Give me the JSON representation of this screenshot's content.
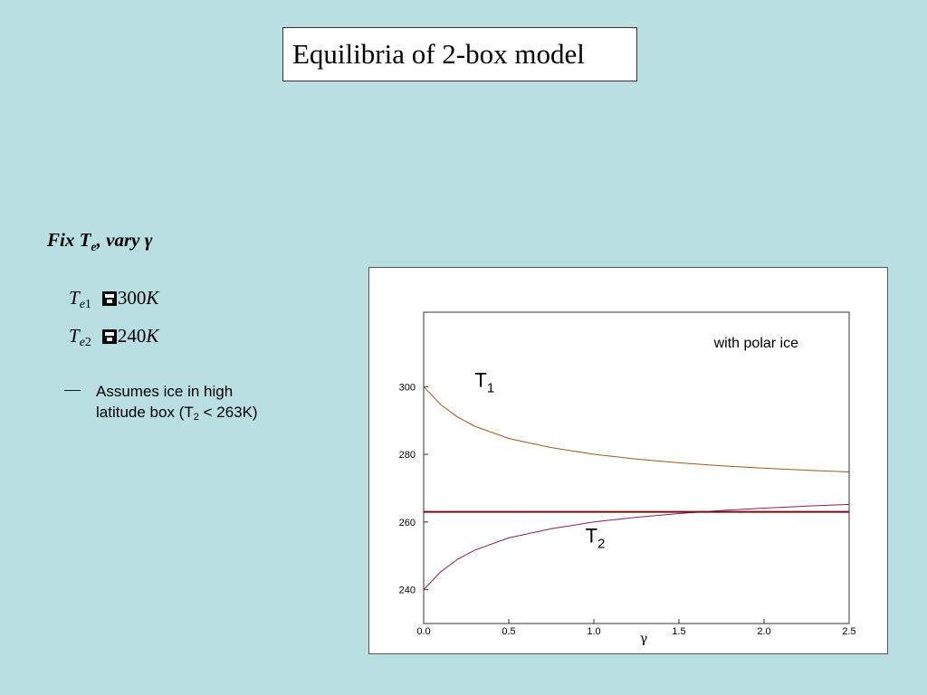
{
  "slide": {
    "title": "Equilibria of 2-box model",
    "heading": {
      "prefix": "Fix T",
      "sub": "e",
      "suffix": ", vary γ"
    },
    "equations": [
      {
        "var": "T",
        "sub_e": "e",
        "sub_n": "1",
        "value": "300",
        "unit": "K"
      },
      {
        "var": "T",
        "sub_e": "e",
        "sub_n": "2",
        "value": "240",
        "unit": "K"
      }
    ],
    "bullet": {
      "dash": "—",
      "line1": "Assumes ice in high",
      "line2_prefix": "latitude box (T",
      "line2_sub": "2",
      "line2_suffix": " < 263K)"
    }
  },
  "chart_data": {
    "type": "line",
    "xlabel": "γ",
    "ylabel": "",
    "xlim": [
      0.0,
      2.5
    ],
    "ylim": [
      230,
      322
    ],
    "xticks": [
      "0.0",
      "0.5",
      "1.0",
      "1.5",
      "2.0",
      "2.5"
    ],
    "yticks": [
      "240",
      "260",
      "280",
      "300"
    ],
    "grid": false,
    "annotation": "with polar ice",
    "colors": {
      "t1": "#9a5a1e",
      "t2": "#8a1f55",
      "threshold": "#7a0a14"
    },
    "series": [
      {
        "name": "T",
        "name_sub": "1",
        "label_at": [
          0.3,
          300
        ],
        "x": [
          0.0,
          0.1,
          0.2,
          0.3,
          0.5,
          0.75,
          1.0,
          1.25,
          1.5,
          1.75,
          2.0,
          2.25,
          2.5
        ],
        "y": [
          300.0,
          294.7,
          291.0,
          288.3,
          284.7,
          282.0,
          280.0,
          278.6,
          277.5,
          276.6,
          275.9,
          275.3,
          274.8
        ]
      },
      {
        "name": "T",
        "name_sub": "2",
        "label_at": [
          0.95,
          254
        ],
        "x": [
          0.0,
          0.1,
          0.2,
          0.3,
          0.5,
          0.75,
          1.0,
          1.25,
          1.5,
          1.75,
          2.0,
          2.25,
          2.5
        ],
        "y": [
          240.0,
          245.3,
          249.0,
          251.7,
          255.3,
          258.0,
          260.0,
          261.4,
          262.5,
          263.4,
          264.1,
          264.7,
          265.2
        ]
      },
      {
        "name": "",
        "x": [
          0.0,
          2.5
        ],
        "y": [
          263,
          263
        ]
      }
    ]
  }
}
